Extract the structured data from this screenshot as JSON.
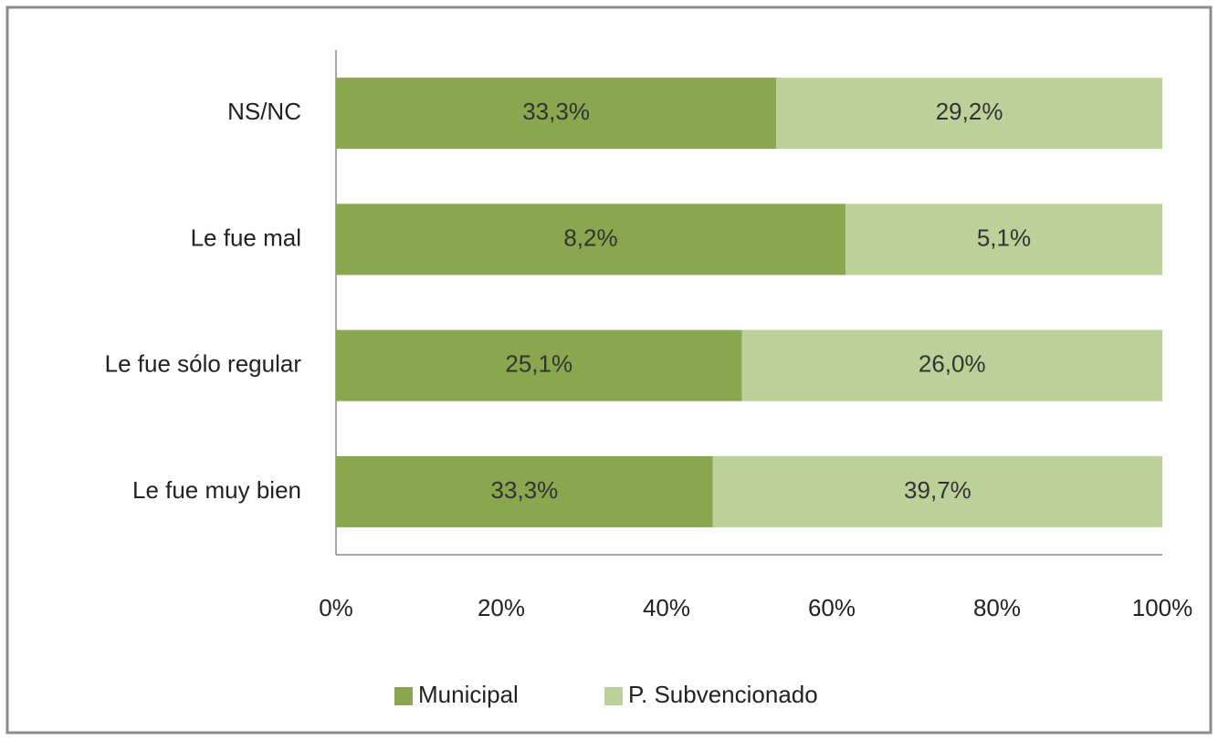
{
  "chart_data": {
    "type": "bar",
    "orientation": "horizontal",
    "stacked": "percent",
    "categories": [
      "NS/NC",
      "Le fue mal",
      "Le fue sólo regular",
      "Le fue muy bien"
    ],
    "series": [
      {
        "name": "Municipal",
        "color": "#8aa64e",
        "values": [
          33.3,
          8.2,
          25.1,
          33.3
        ],
        "value_labels": [
          "33,3%",
          "8,2%",
          "25,1%",
          "33,3%"
        ]
      },
      {
        "name": "P. Subvencionado",
        "color": "#bcd09a",
        "values": [
          29.2,
          5.1,
          26.0,
          39.7
        ],
        "value_labels": [
          "29,2%",
          "5,1%",
          "26,0%",
          "39,7%"
        ]
      }
    ],
    "xlim": [
      0,
      100
    ],
    "xticks": [
      {
        "value": 0,
        "label": "0%"
      },
      {
        "value": 20,
        "label": "20%"
      },
      {
        "value": 40,
        "label": "40%"
      },
      {
        "value": 60,
        "label": "60%"
      },
      {
        "value": 80,
        "label": "80%"
      },
      {
        "value": 100,
        "label": "100%"
      }
    ],
    "legend": "bottom"
  }
}
